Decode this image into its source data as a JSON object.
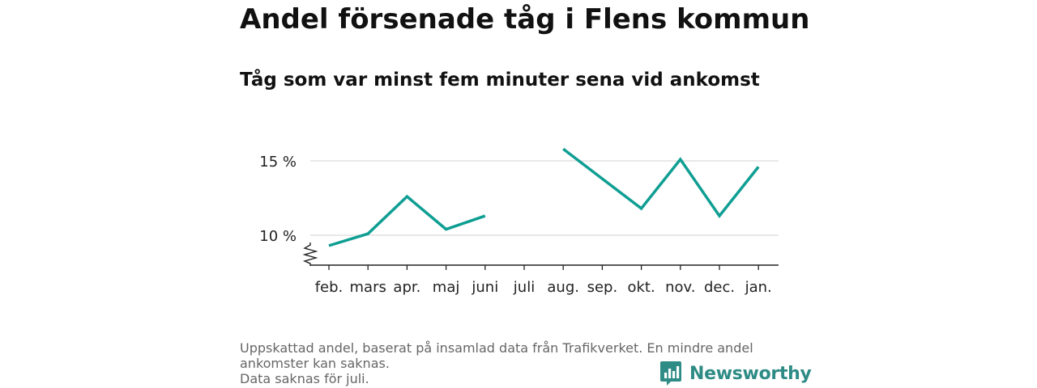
{
  "header": {
    "title": "Andel försenade tåg i Flens kommun",
    "subtitle": "Tåg som var minst fem minuter sena vid ankomst"
  },
  "footer": {
    "note_lines": [
      "Uppskattad andel, baserat på insamlad data från Trafikverket. En mindre andel ankomster kan saknas.",
      "Data saknas för juli."
    ],
    "brand": "Newsworthy"
  },
  "colors": {
    "line": "#0f9e93",
    "brand": "#2e8b85",
    "grid": "#d9d9d9"
  },
  "chart_data": {
    "type": "line",
    "title": "Andel försenade tåg i Flens kommun",
    "subtitle": "Tåg som var minst fem minuter sena vid ankomst",
    "categories": [
      "feb.",
      "mars",
      "apr.",
      "maj",
      "juni",
      "juli",
      "aug.",
      "sep.",
      "okt.",
      "nov.",
      "dec.",
      "jan."
    ],
    "series": [
      {
        "values": [
          9.3,
          10.1,
          12.6,
          10.4,
          11.3,
          null,
          15.8,
          13.8,
          11.8,
          15.1,
          11.3,
          14.6
        ]
      }
    ],
    "yticks": [
      10,
      15
    ],
    "ytick_labels": [
      "10 %",
      "15 %"
    ],
    "ylim": [
      8,
      17
    ],
    "axis_break": true,
    "grid": true,
    "legend": "none"
  }
}
